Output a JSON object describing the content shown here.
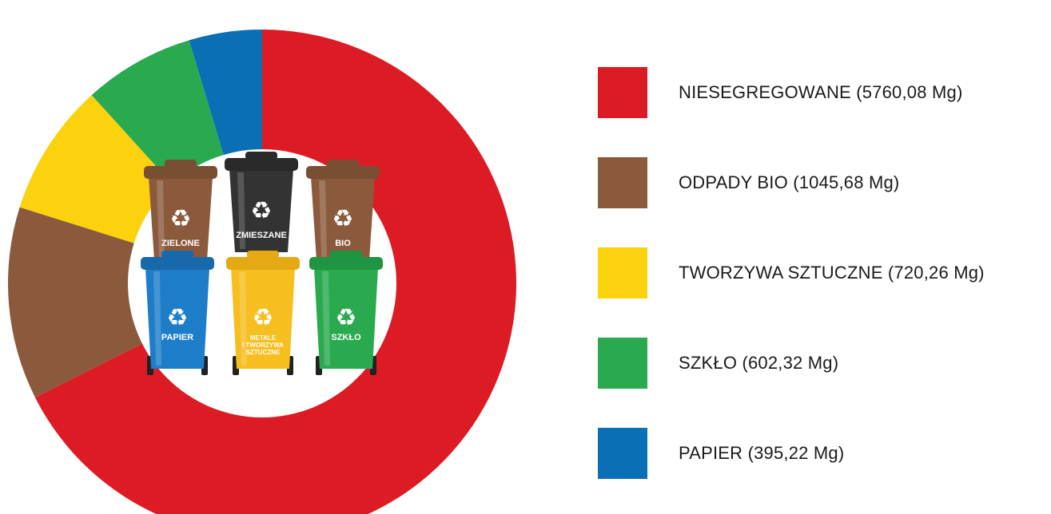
{
  "chart_data": {
    "type": "pie",
    "variant": "donut",
    "title": "",
    "unit": "Mg",
    "categories": [
      "NIESEGREGOWANE",
      "ODPADY BIO",
      "TWORZYWA SZTUCZNE",
      "SZKŁO",
      "PAPIER"
    ],
    "values": [
      5760.08,
      1045.68,
      720.26,
      602.32,
      395.22
    ],
    "colors": [
      "#DC1B24",
      "#8B5A3C",
      "#FCD20E",
      "#2AAA4F",
      "#0A6FB5"
    ],
    "legend_labels": [
      "NIESEGREGOWANE (5760,08 Mg)",
      "ODPADY BIO (1045,68 Mg)",
      "TWORZYWA SZTUCZNE (720,26 Mg)",
      "SZKŁO (602,32 Mg)",
      "PAPIER (395,22 Mg)"
    ],
    "legend_position": "right"
  },
  "bins": [
    {
      "label": "ZIELONE",
      "color": "#8B5A3C",
      "lid": "#7A4E33",
      "icon": "recycle-icon"
    },
    {
      "label": "ZMIESZANE",
      "color": "#333333",
      "lid": "#2A2A2A",
      "icon": "recycle-icon"
    },
    {
      "label": "BIO",
      "color": "#8B5A3C",
      "lid": "#7A4E33",
      "icon": "recycle-icon"
    },
    {
      "label": "PAPIER",
      "color": "#1E7DC8",
      "lid": "#1869AB",
      "icon": "recycle-icon"
    },
    {
      "label": "METALE I TWORZYWA SZTUCZNE",
      "lines": [
        "METALE",
        "I TWORZYWA",
        "SZTUCZNE"
      ],
      "color": "#F6BE1E",
      "lid": "#E5A914",
      "icon": "recycle-icon"
    },
    {
      "label": "SZKŁO",
      "color": "#2AAA4F",
      "lid": "#1F9442",
      "icon": "recycle-icon"
    }
  ]
}
